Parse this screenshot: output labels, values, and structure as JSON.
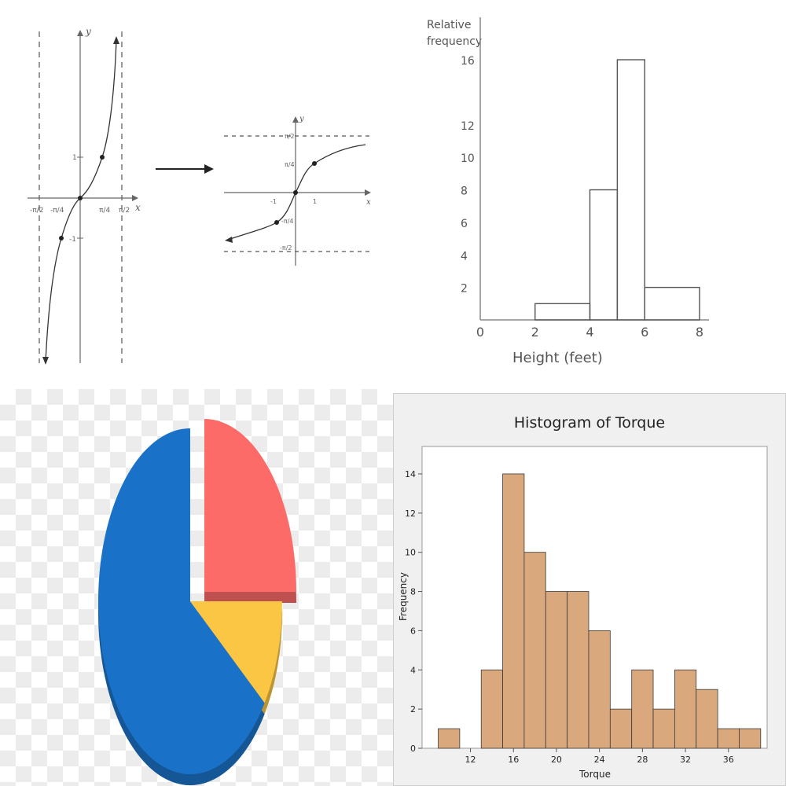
{
  "chart_data": [
    {
      "type": "line",
      "panel": "tangent-graph",
      "xaxis_label": "x",
      "yaxis_label": "y",
      "x_ticks": [
        "-π/2",
        "-π/4",
        "π/4",
        "π/2"
      ],
      "y_ticks": [
        "1",
        "-1"
      ],
      "asymptotes_vertical": [
        "-π/2",
        "π/2"
      ],
      "points": [
        {
          "x": "π/4",
          "y": 1
        },
        {
          "x": "-π/4",
          "y": -1
        }
      ],
      "arrow": "right"
    },
    {
      "type": "line",
      "panel": "arctangent-graph",
      "xaxis_label": "x",
      "yaxis_label": "y",
      "x_ticks": [
        "-1",
        "1"
      ],
      "y_ticks": [
        "π/2",
        "π/4",
        "-π/4",
        "-π/2"
      ],
      "asymptotes_horizontal": [
        "π/2",
        "-π/2"
      ],
      "points": [
        {
          "x": 1,
          "y": "π/4"
        },
        {
          "x": -1,
          "y": "-π/4"
        }
      ]
    },
    {
      "type": "bar",
      "panel": "relative-frequency",
      "ylabel_lines": [
        "Relative",
        "frequency"
      ],
      "xlabel": "Height (feet)",
      "y_tick_labels": [
        "16",
        "12",
        "10",
        "8",
        "6",
        "4",
        "2"
      ],
      "x_tick_labels": [
        "0",
        "2",
        "4",
        "6",
        "8"
      ],
      "bars": [
        {
          "x0": 2,
          "x1": 4,
          "value": 1
        },
        {
          "x0": 4,
          "x1": 5,
          "value": 8
        },
        {
          "x0": 5,
          "x1": 6,
          "value": 16
        },
        {
          "x0": 6,
          "x1": 8,
          "value": 2
        }
      ]
    },
    {
      "type": "pie",
      "panel": "pie-3d",
      "slices": [
        {
          "value": 65,
          "color": "#1a72c8",
          "exploded": false
        },
        {
          "value": 25,
          "color": "#fd6b69",
          "exploded": true
        },
        {
          "value": 10,
          "color": "#fbc643",
          "exploded": false
        }
      ]
    },
    {
      "type": "bar",
      "panel": "histogram-torque",
      "title": "Histogram of Torque",
      "xlabel": "Torque",
      "ylabel": "Frequency",
      "bin_width": 2,
      "bins": [
        {
          "center": 10,
          "value": 1
        },
        {
          "center": 12,
          "value": 0
        },
        {
          "center": 14,
          "value": 4
        },
        {
          "center": 16,
          "value": 14
        },
        {
          "center": 18,
          "value": 10
        },
        {
          "center": 20,
          "value": 8
        },
        {
          "center": 22,
          "value": 8
        },
        {
          "center": 24,
          "value": 6
        },
        {
          "center": 26,
          "value": 2
        },
        {
          "center": 28,
          "value": 4
        },
        {
          "center": 30,
          "value": 2
        },
        {
          "center": 32,
          "value": 4
        },
        {
          "center": 34,
          "value": 3
        },
        {
          "center": 36,
          "value": 1
        },
        {
          "center": 38,
          "value": 1
        }
      ],
      "x_ticks": [
        12,
        16,
        20,
        24,
        28,
        32,
        36
      ],
      "y_ticks": [
        0,
        2,
        4,
        6,
        8,
        10,
        12,
        14
      ],
      "ylim": [
        0,
        15
      ],
      "bar_color": "#daa87d"
    }
  ]
}
